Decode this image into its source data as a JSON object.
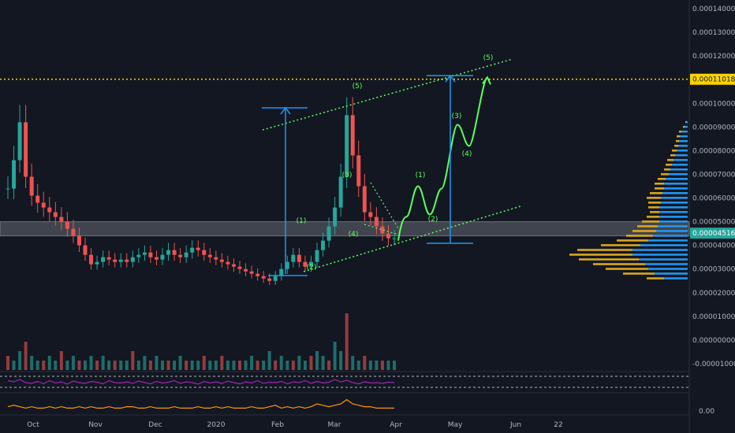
{
  "chart_data": {
    "type": "candlestick",
    "price_axis": {
      "ticks": [
        "0.00014000",
        "0.00013000",
        "0.00012000",
        "0.00011000",
        "0.00010000",
        "0.00009000",
        "0.00008000",
        "0.00007000",
        "0.00006000",
        "0.00005000",
        "0.00004000",
        "0.00003000",
        "0.00002000",
        "0.00001000",
        "0.00000000",
        "-0.00001000"
      ],
      "ylim": [
        -1.2e-05,
        0.000142
      ]
    },
    "time_axis": {
      "labels": [
        "Oct",
        "Nov",
        "Dec",
        "2020",
        "Feb",
        "Mar",
        "Apr",
        "May",
        "Jun",
        "22"
      ]
    },
    "price_series": {
      "name": "",
      "values": [
        6.4e-05,
        7.6e-05,
        9.2e-05,
        6.9e-05,
        6.1e-05,
        5.8e-05,
        5.6e-05,
        5.4e-05,
        5.2e-05,
        5e-05,
        4.7e-05,
        4.4e-05,
        4e-05,
        3.6e-05,
        3.2e-05,
        3.3e-05,
        3.5e-05,
        3.4e-05,
        3.3e-05,
        3.4e-05,
        3.3e-05,
        3.5e-05,
        3.6e-05,
        3.7e-05,
        3.5e-05,
        3.4e-05,
        3.6e-05,
        3.8e-05,
        3.6e-05,
        3.5e-05,
        3.7e-05,
        3.9e-05,
        3.8e-05,
        3.6e-05,
        3.5e-05,
        3.4e-05,
        3.3e-05,
        3.2e-05,
        3.1e-05,
        3e-05,
        2.9e-05,
        2.8e-05,
        2.7e-05,
        2.6e-05,
        2.5e-05,
        2.7e-05,
        3e-05,
        3.3e-05,
        3.6e-05,
        3.3e-05,
        3.1e-05,
        3.3e-05,
        3.8e-05,
        4.2e-05,
        4.8e-05,
        5.6e-05,
        6.9e-05,
        9.5e-05,
        7.8e-05,
        6.5e-05,
        5.4e-05,
        5.2e-05,
        4.8e-05,
        4.5e-05,
        4.3e-05,
        4.3e-05
      ]
    },
    "highlighted_levels": [
      {
        "label": "0.00011018",
        "value": 0.00011018,
        "color": "#ffd400"
      },
      {
        "label": "0.00004516",
        "value": 4.516e-05,
        "color": "#26a69a"
      }
    ],
    "support_zone": {
      "from": 4.4e-05,
      "to": 5e-05
    },
    "projection_path": [
      [
        4.2e-05
      ],
      [
        5.2e-05
      ],
      [
        6.5e-05
      ],
      [
        5.3e-05
      ],
      [
        6.4e-05
      ],
      [
        9.1e-05
      ],
      [
        8.2e-05
      ],
      [
        0.000111
      ]
    ],
    "wave_labels": {
      "historic": [
        "(1)",
        "(2)",
        "(3)",
        "(4)",
        "(5)"
      ],
      "projected": [
        "(1)",
        "(2)",
        "(3)",
        "(4)",
        "(5)"
      ]
    },
    "volume_profile": {
      "price_levels": [
        9.2e-05,
        9e-05,
        8.8e-05,
        8.6e-05,
        8.4e-05,
        8.2e-05,
        8e-05,
        7.8e-05,
        7.6e-05,
        7.4e-05,
        7.2e-05,
        7e-05,
        6.8e-05,
        6.6e-05,
        6.4e-05,
        6.2e-05,
        6e-05,
        5.8e-05,
        5.6e-05,
        5.4e-05,
        5.2e-05,
        5e-05,
        4.8e-05,
        4.6e-05,
        4.4e-05,
        4.2e-05,
        4e-05,
        3.8e-05,
        3.6e-05,
        3.4e-05,
        3.2e-05,
        3e-05,
        2.8e-05,
        2.6e-05
      ],
      "buy": [
        2,
        4,
        8,
        10,
        11,
        12,
        14,
        16,
        18,
        20,
        22,
        24,
        28,
        30,
        30,
        32,
        34,
        34,
        36,
        36,
        36,
        36,
        38,
        40,
        44,
        50,
        60,
        70,
        70,
        62,
        54,
        50,
        42,
        30
      ],
      "sell": [
        1,
        2,
        3,
        4,
        4,
        5,
        6,
        6,
        8,
        8,
        8,
        10,
        10,
        12,
        12,
        16,
        18,
        16,
        14,
        12,
        16,
        22,
        26,
        30,
        34,
        40,
        50,
        70,
        80,
        76,
        66,
        54,
        40,
        22
      ]
    },
    "volume_series": [
      3,
      2,
      4,
      6,
      3,
      2,
      2,
      3,
      2,
      4,
      2,
      3,
      2,
      2,
      3,
      2,
      3,
      2,
      2,
      2,
      2,
      4,
      2,
      3,
      2,
      3,
      2,
      2,
      2,
      3,
      2,
      2,
      2,
      3,
      2,
      2,
      3,
      2,
      2,
      2,
      2,
      3,
      2,
      2,
      4,
      2,
      3,
      2,
      2,
      3,
      2,
      3,
      4,
      3,
      2,
      6,
      4,
      12,
      3,
      2,
      3,
      2,
      2,
      2,
      2,
      2
    ],
    "rsi_series": [
      55,
      52,
      58,
      50,
      48,
      53,
      47,
      55,
      49,
      52,
      46,
      54,
      50,
      48,
      53,
      51,
      47,
      55,
      50,
      49,
      52,
      48,
      54,
      50,
      47,
      53,
      49,
      51,
      55,
      48,
      52,
      50,
      46,
      53,
      49,
      52,
      48,
      54,
      50,
      47,
      52,
      49,
      55,
      48,
      51,
      50,
      53,
      47,
      52,
      50,
      55,
      48,
      53,
      49,
      51,
      58,
      52,
      56,
      50,
      47,
      52,
      49,
      50,
      48,
      51,
      50
    ],
    "osc_series": [
      3,
      4,
      3,
      2,
      3,
      2,
      2,
      3,
      2,
      3,
      2,
      2,
      3,
      2,
      3,
      2,
      2,
      3,
      2,
      2,
      3,
      3,
      2,
      2,
      3,
      2,
      2,
      2,
      3,
      2,
      2,
      2,
      3,
      2,
      2,
      3,
      2,
      3,
      2,
      2,
      2,
      3,
      2,
      2,
      3,
      4,
      2,
      3,
      2,
      3,
      2,
      3,
      5,
      4,
      3,
      4,
      5,
      8,
      5,
      4,
      3,
      3,
      2,
      2,
      2,
      2
    ],
    "osc_axis_label": "0.00"
  },
  "colors": {
    "background": "#131722",
    "grid": "#1e222d",
    "candle_up": "#26a69a",
    "candle_down": "#ef5350",
    "wave_green": "#5cff5c",
    "arrow_blue": "#2196f3",
    "rsi_purple": "#9c27b0",
    "osc_orange": "#ff9800",
    "vp_buy": "#2196f3",
    "vp_sell": "#daa520"
  }
}
